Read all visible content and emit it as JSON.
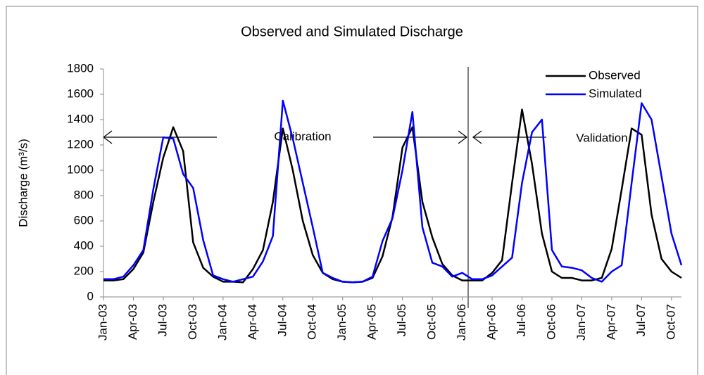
{
  "chart_data": {
    "type": "line",
    "title": "Observed and Simulated Discharge",
    "y_label": "Discharge (m³/s)",
    "categories": [
      "Jan-03",
      null,
      null,
      "Apr-03",
      null,
      null,
      "Jul-03",
      null,
      null,
      "Oct-03",
      null,
      null,
      "Jan-04",
      null,
      null,
      "Apr-04",
      null,
      null,
      "Jul-04",
      null,
      null,
      "Oct-04",
      null,
      null,
      "Jan-05",
      null,
      null,
      "Apr-05",
      null,
      null,
      "Jul-05",
      null,
      null,
      "Oct-05",
      null,
      null,
      "Jan-06",
      null,
      null,
      "Apr-06",
      null,
      null,
      "Jul-06",
      null,
      null,
      "Oct-06",
      null,
      null,
      "Jan-07",
      null,
      null,
      "Apr-07",
      null,
      null,
      "Jul-07",
      null,
      null,
      "Oct-07",
      null
    ],
    "series": [
      {
        "name": "Observed",
        "color": "#000000",
        "values": [
          130,
          130,
          140,
          220,
          350,
          750,
          1100,
          1340,
          1150,
          430,
          230,
          160,
          120,
          120,
          115,
          220,
          370,
          750,
          1330,
          1000,
          600,
          330,
          190,
          140,
          120,
          115,
          120,
          150,
          320,
          630,
          1180,
          1340,
          750,
          470,
          260,
          170,
          130,
          130,
          130,
          190,
          290,
          900,
          1480,
          1050,
          500,
          200,
          150,
          150,
          130,
          130,
          150,
          380,
          850,
          1330,
          1280,
          650,
          300,
          200,
          150
        ]
      },
      {
        "name": "Simulated",
        "color": "#0000ff",
        "values": [
          140,
          140,
          160,
          250,
          370,
          850,
          1260,
          1250,
          970,
          860,
          450,
          170,
          140,
          120,
          140,
          160,
          280,
          480,
          1550,
          1250,
          900,
          550,
          190,
          150,
          120,
          115,
          120,
          160,
          440,
          620,
          1000,
          1460,
          550,
          270,
          240,
          160,
          190,
          140,
          140,
          170,
          240,
          310,
          900,
          1300,
          1400,
          370,
          240,
          230,
          210,
          150,
          120,
          200,
          250,
          900,
          1530,
          1400,
          950,
          500,
          250
        ]
      }
    ],
    "annotations": [
      "Calibration",
      "Validation"
    ],
    "ylim": [
      0,
      1800
    ],
    "yticks": [
      0,
      200,
      400,
      600,
      800,
      1000,
      1200,
      1400,
      1600,
      1800
    ],
    "grid": false,
    "legend": "upper right"
  }
}
